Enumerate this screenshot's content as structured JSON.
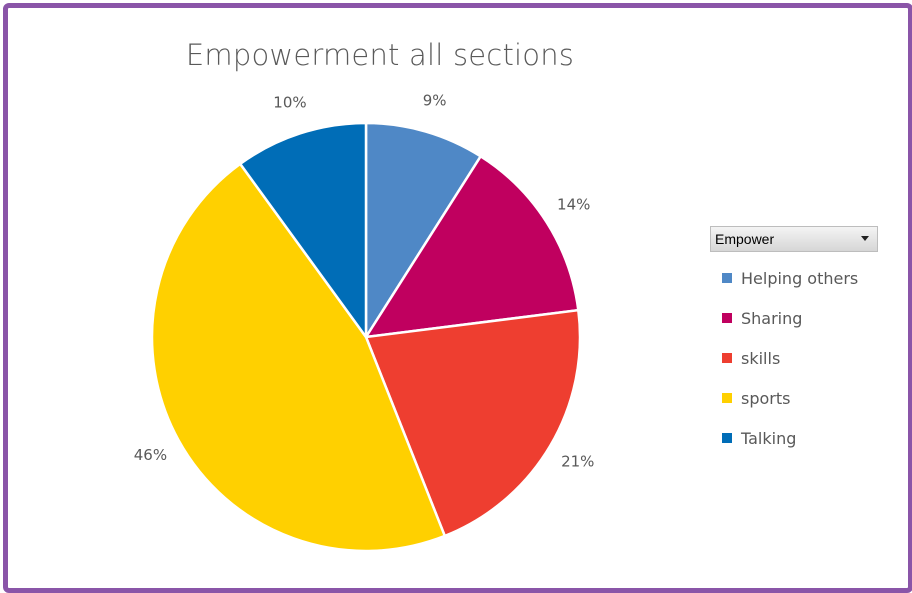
{
  "chart_data": {
    "type": "pie",
    "title": "Empowerment all sections",
    "filter_field": "Empower",
    "slices": [
      {
        "label": "Helping others",
        "value": 9,
        "display": "9%",
        "color": "#4f88c6"
      },
      {
        "label": "Sharing",
        "value": 14,
        "display": "14%",
        "color": "#c0005f"
      },
      {
        "label": "skills",
        "value": 21,
        "display": "21%",
        "color": "#ee3e30"
      },
      {
        "label": "sports",
        "value": 46,
        "display": "46%",
        "color": "#ffd000"
      },
      {
        "label": "Talking",
        "value": 10,
        "display": "10%",
        "color": "#006db7"
      }
    ],
    "legend_position": "right"
  }
}
